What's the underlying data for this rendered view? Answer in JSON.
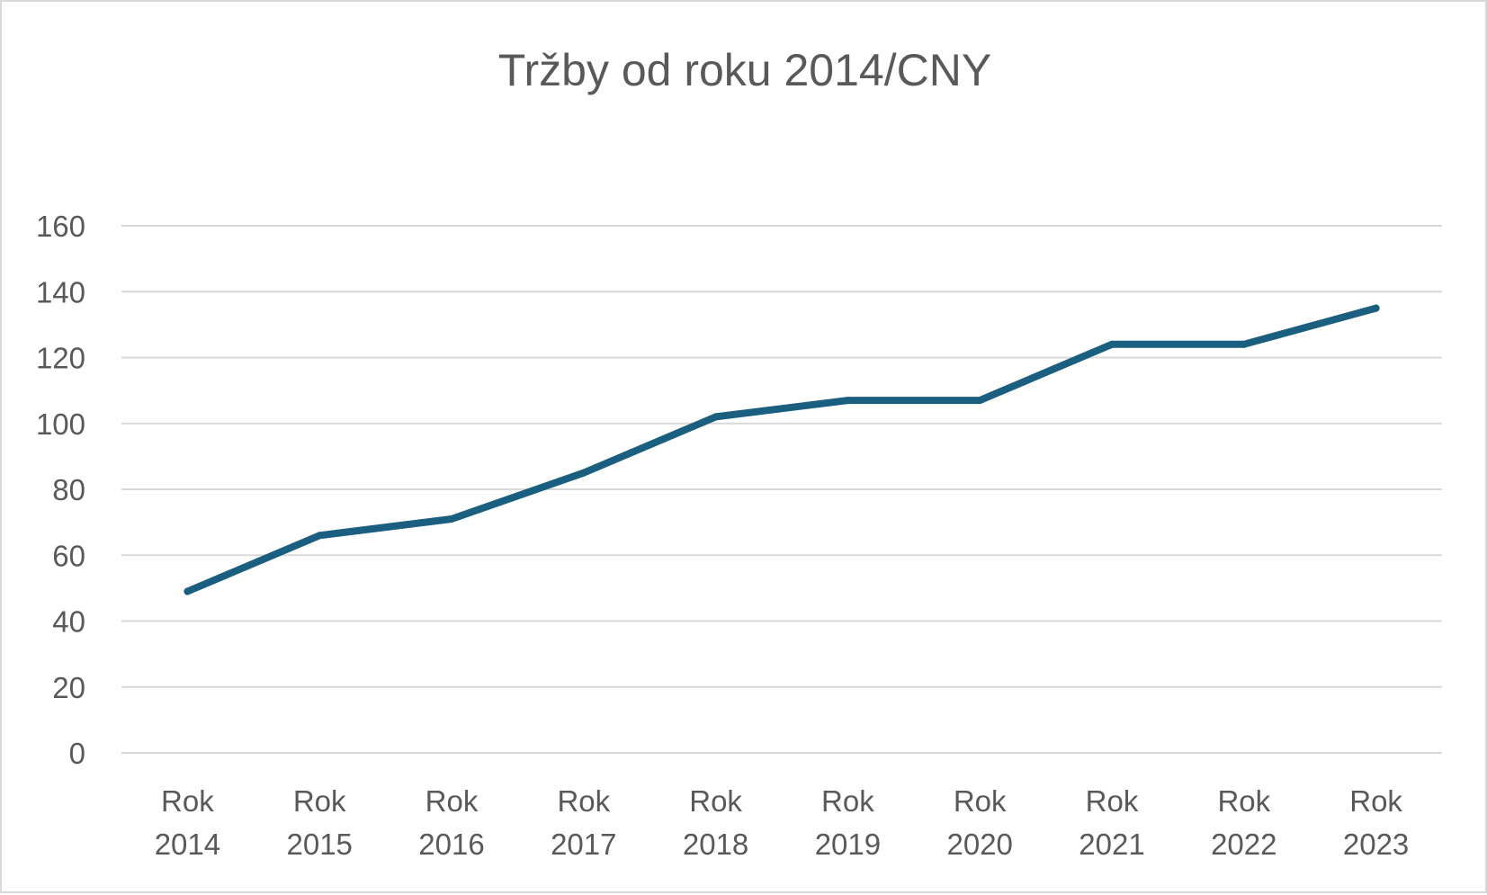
{
  "chart_data": {
    "type": "line",
    "title": "Tržby od roku 2014/CNY",
    "xlabel": "",
    "ylabel": "",
    "categories": [
      [
        "Rok",
        "2014"
      ],
      [
        "Rok",
        "2015"
      ],
      [
        "Rok",
        "2016"
      ],
      [
        "Rok",
        "2017"
      ],
      [
        "Rok",
        "2018"
      ],
      [
        "Rok",
        "2019"
      ],
      [
        "Rok",
        "2020"
      ],
      [
        "Rok",
        "2021"
      ],
      [
        "Rok",
        "2022"
      ],
      [
        "Rok",
        "2023"
      ]
    ],
    "series": [
      {
        "values": [
          49,
          66,
          71,
          85,
          102,
          107,
          107,
          124,
          124,
          135
        ],
        "color": "#1a5f80"
      }
    ],
    "ylim": [
      0,
      160
    ],
    "yticks": [
      0,
      20,
      40,
      60,
      80,
      100,
      120,
      140,
      160
    ],
    "grid": true,
    "legend": "none",
    "colors": {
      "grid": "#d9d9d9",
      "text": "#595959",
      "line": "#1a5f80"
    }
  }
}
